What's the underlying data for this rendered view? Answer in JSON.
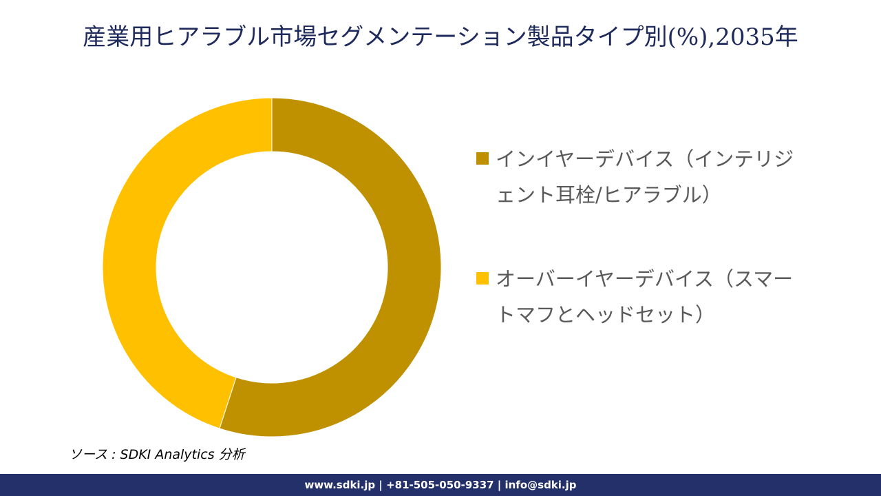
{
  "chart_data": {
    "type": "donut",
    "title": "産業用ヒアラブル市場セグメンテーション製品タイプ別(%),2035年",
    "series": [
      {
        "name": "インイヤーデバイス（インテリジェント耳栓/ヒアラブル）",
        "color": "#bf9000",
        "value": 55
      },
      {
        "name": "オーバーイヤーデバイス（スマートマフとヘッドセット）",
        "color": "#ffc000",
        "value": 45
      }
    ],
    "source": "ソース : SDKI Analytics 分析",
    "footer": "www.sdki.jp | +81-505-050-9337 | info@sdki.jp"
  }
}
